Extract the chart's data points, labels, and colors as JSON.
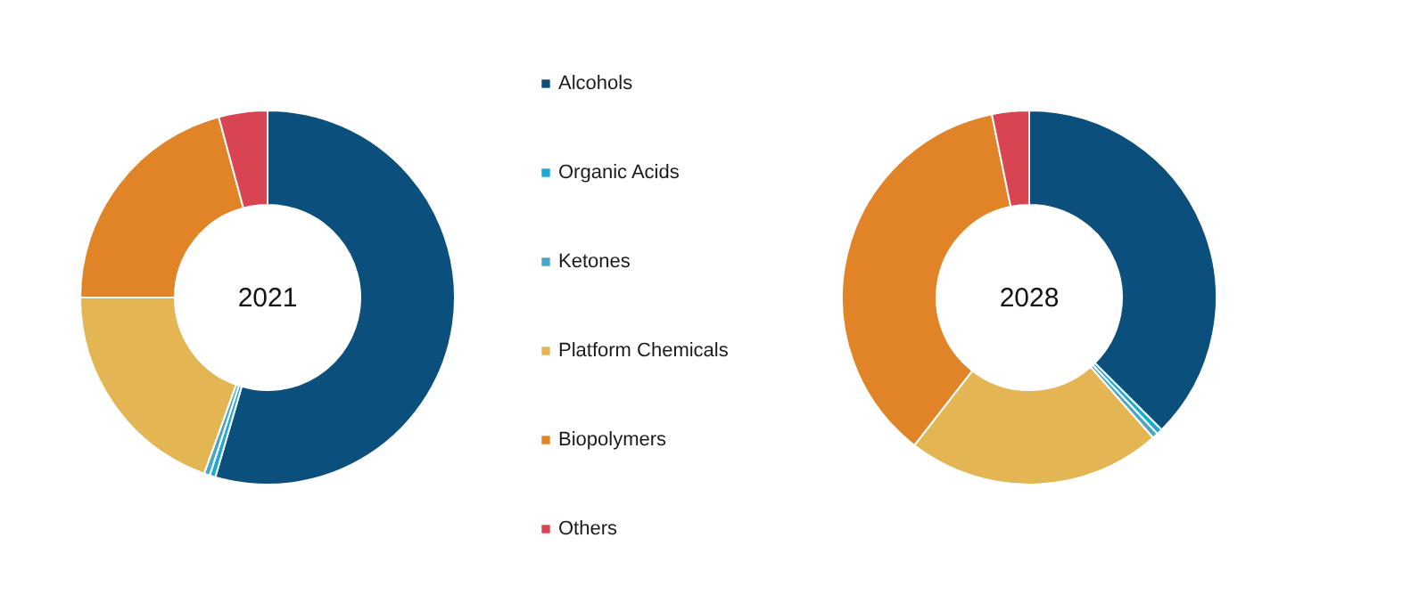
{
  "chart_data": {
    "type": "donut",
    "categories": [
      "Alcohols",
      "Organic Acids",
      "Ketones",
      "Platform Chemicals",
      "Biopolymers",
      "Others"
    ],
    "colors": [
      "#0b4f7c",
      "#1ba9d6",
      "#4aa6c4",
      "#e3b553",
      "#e08427",
      "#d94452"
    ],
    "legend": "right",
    "series": [
      {
        "name": "2021",
        "values": [
          54.5,
          0.5,
          0.5,
          19.5,
          20.8,
          4.2
        ]
      },
      {
        "name": "2028",
        "values": [
          37.5,
          0.5,
          0.5,
          22,
          36.3,
          3.2
        ]
      }
    ]
  }
}
